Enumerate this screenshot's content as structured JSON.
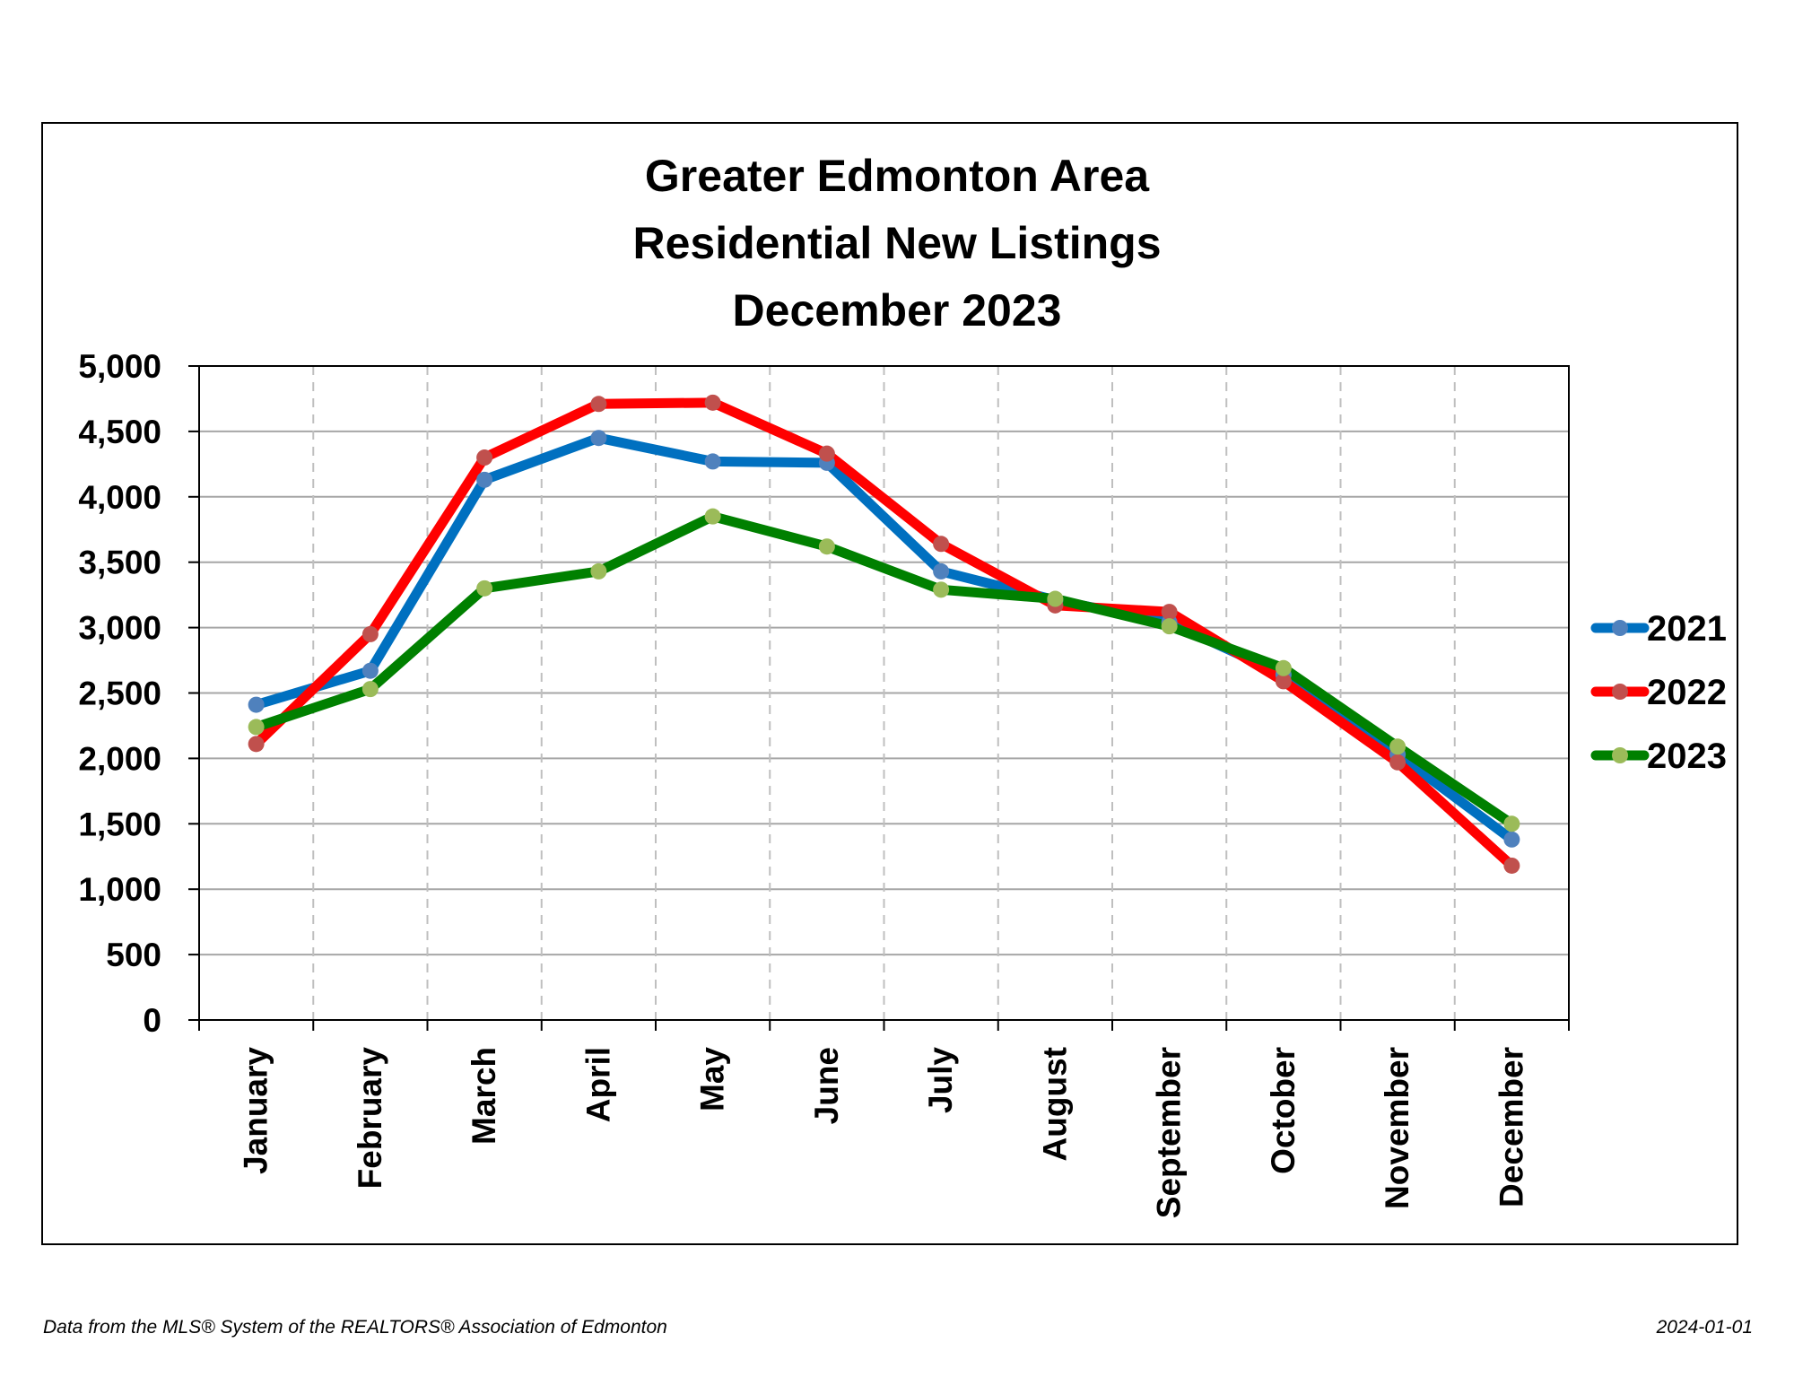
{
  "chart_data": {
    "type": "line",
    "title": [
      "Greater Edmonton Area",
      "Residential New Listings",
      "December 2023"
    ],
    "categories": [
      "January",
      "February",
      "March",
      "April",
      "May",
      "June",
      "July",
      "August",
      "September",
      "October",
      "November",
      "December"
    ],
    "yticks": [
      "0",
      "500",
      "1,000",
      "1,500",
      "2,000",
      "2,500",
      "3,000",
      "3,500",
      "4,000",
      "4,500",
      "5,000"
    ],
    "ylim": [
      0,
      5000
    ],
    "ystep": 500,
    "grid": true,
    "legend_position": "right",
    "series": [
      {
        "name": "2021",
        "color": "#0070C0",
        "marker": "#4F81BD",
        "values": [
          2410,
          2670,
          4130,
          4450,
          4270,
          4260,
          3430,
          3210,
          3040,
          2640,
          2030,
          1380
        ]
      },
      {
        "name": "2022",
        "color": "#FF0000",
        "marker": "#C0504D",
        "values": [
          2110,
          2950,
          4300,
          4710,
          4720,
          4330,
          3640,
          3170,
          3120,
          2590,
          1970,
          1180
        ]
      },
      {
        "name": "2023",
        "color": "#008000",
        "marker": "#9BBB59",
        "values": [
          2240,
          2530,
          3300,
          3430,
          3850,
          3620,
          3290,
          3220,
          3010,
          2690,
          2090,
          1500
        ]
      }
    ]
  },
  "footer": {
    "source": "Data from the MLS® System of the REALTORS® Association of Edmonton",
    "date": "2024-01-01"
  }
}
